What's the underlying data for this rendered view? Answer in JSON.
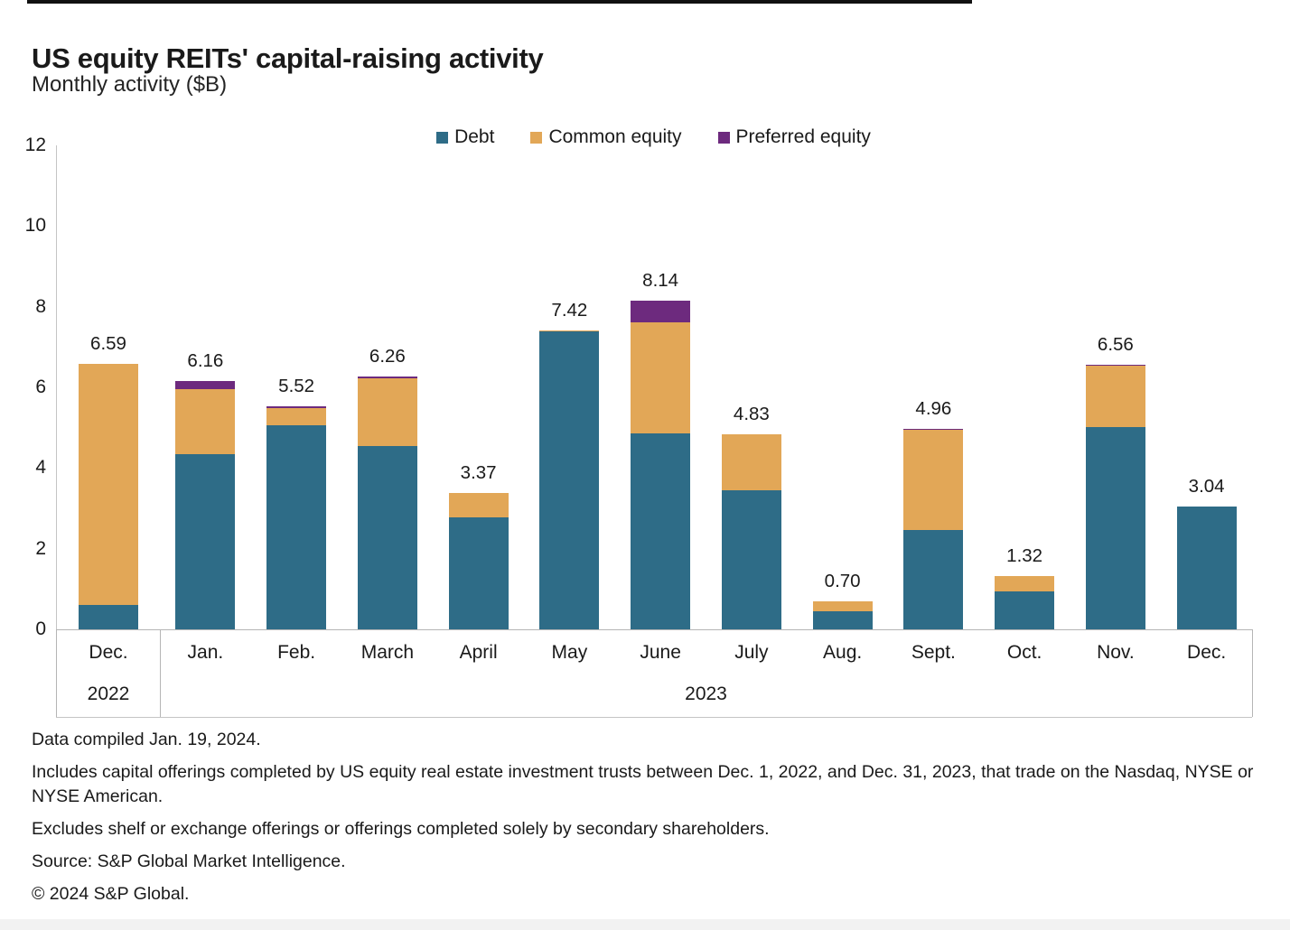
{
  "header": {
    "title": "US equity REITs' capital-raising activity",
    "subtitle": "Monthly activity ($B)"
  },
  "chart_data": {
    "type": "bar",
    "stacked": true,
    "title": "US equity REITs' capital-raising activity",
    "subtitle": "Monthly activity ($B)",
    "ylabel": "",
    "xlabel": "",
    "ylim": [
      0,
      12
    ],
    "yticks": [
      0,
      2,
      4,
      6,
      8,
      10,
      12
    ],
    "grid": false,
    "legend_position": "top",
    "categories": [
      "Dec.",
      "Jan.",
      "Feb.",
      "March",
      "April",
      "May",
      "June",
      "July",
      "Aug.",
      "Sept.",
      "Oct.",
      "Nov.",
      "Dec."
    ],
    "year_groups": [
      {
        "label": "2022",
        "start": 0,
        "count": 1
      },
      {
        "label": "2023",
        "start": 1,
        "count": 12
      }
    ],
    "series": [
      {
        "name": "Debt",
        "color": "#2e6c87",
        "values": [
          0.6,
          4.35,
          5.05,
          4.55,
          2.78,
          7.38,
          4.85,
          3.45,
          0.45,
          2.46,
          0.93,
          5.01,
          3.04
        ]
      },
      {
        "name": "Common equity",
        "color": "#e2a757",
        "values": [
          5.99,
          1.61,
          0.44,
          1.68,
          0.59,
          0.04,
          2.77,
          1.38,
          0.25,
          2.48,
          0.39,
          1.53,
          0.0
        ]
      },
      {
        "name": "Preferred equity",
        "color": "#6d2a7e",
        "values": [
          0.0,
          0.2,
          0.03,
          0.03,
          0.0,
          0.0,
          0.52,
          0.0,
          0.0,
          0.02,
          0.0,
          0.02,
          0.0
        ]
      }
    ],
    "totals": [
      6.59,
      6.16,
      5.52,
      6.26,
      3.37,
      7.42,
      8.14,
      4.83,
      0.7,
      4.96,
      1.32,
      6.56,
      3.04
    ],
    "total_labels": [
      "6.59",
      "6.16",
      "5.52",
      "6.26",
      "3.37",
      "7.42",
      "8.14",
      "4.83",
      "0.70",
      "4.96",
      "1.32",
      "6.56",
      "3.04"
    ]
  },
  "footnotes": {
    "compiled": "Data compiled Jan. 19, 2024.",
    "includes": "Includes capital offerings completed by US equity real estate investment trusts between Dec. 1, 2022, and Dec. 31, 2023, that trade on the Nasdaq, NYSE or NYSE American.",
    "excludes": "Excludes shelf or exchange offerings or offerings completed solely by secondary shareholders.",
    "source": "Source: S&P Global Market Intelligence.",
    "copyright": "© 2024 S&P Global."
  }
}
